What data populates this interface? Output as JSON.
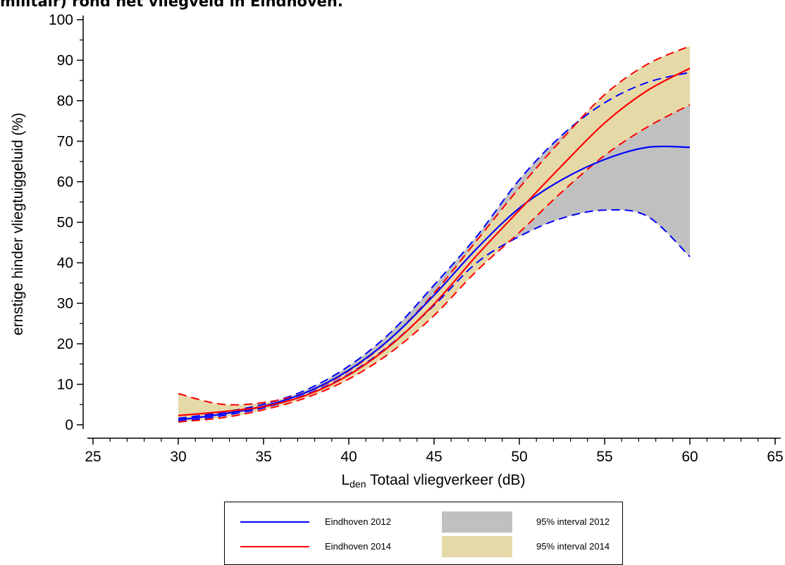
{
  "title": "militair) rond het vliegveld in Eindhoven.",
  "chart_data": {
    "type": "line",
    "xlabel_main": "L",
    "xlabel_sub": "den",
    "xlabel_rest": " Totaal vliegverkeer (dB)",
    "ylabel": "ernstige hinder vliegtuiggeluid (%)",
    "xlim": [
      25,
      65
    ],
    "ylim": [
      0,
      100
    ],
    "xticks": [
      25,
      30,
      35,
      40,
      45,
      50,
      55,
      60,
      65
    ],
    "yticks": [
      0,
      10,
      20,
      30,
      40,
      50,
      60,
      70,
      80,
      90,
      100
    ],
    "x": [
      30,
      32.5,
      35,
      37.5,
      40,
      42.5,
      45,
      47.5,
      50,
      52.5,
      55,
      57.5,
      60
    ],
    "series": [
      {
        "name": "Eindhoven 2012",
        "color": "#0000ff",
        "values": [
          1.2,
          2.6,
          4.6,
          8.0,
          13.5,
          21.5,
          32.0,
          43.5,
          53.5,
          60.5,
          65.5,
          68.5,
          68.5
        ],
        "lower": [
          0.8,
          2.2,
          4.2,
          7.5,
          12.5,
          20.0,
          29.5,
          40.0,
          46.5,
          51.0,
          53.0,
          51.5,
          41.5
        ],
        "upper": [
          1.6,
          3.0,
          5.1,
          8.6,
          14.5,
          23.0,
          34.5,
          46.5,
          60.5,
          71.5,
          79.5,
          84.5,
          87.0
        ]
      },
      {
        "name": "Eindhoven 2014",
        "color": "#ff0000",
        "values": [
          2.3,
          3.2,
          4.5,
          7.3,
          12.3,
          19.8,
          29.8,
          41.8,
          53.0,
          64.0,
          74.5,
          82.5,
          88.0
        ],
        "lower": [
          0.7,
          1.7,
          3.7,
          6.7,
          11.3,
          18.0,
          27.0,
          38.0,
          47.5,
          57.5,
          66.5,
          73.5,
          79.0
        ],
        "upper": [
          7.7,
          5.1,
          5.5,
          8.0,
          13.3,
          21.5,
          32.5,
          45.5,
          58.5,
          70.5,
          81.5,
          89.0,
          93.5
        ]
      }
    ],
    "legend": {
      "position": "bottom",
      "items": [
        {
          "label": "Eindhoven 2012",
          "kind": "line",
          "color": "#0000ff"
        },
        {
          "label": "95% interval 2012",
          "kind": "band",
          "color": "#c0c0c0"
        },
        {
          "label": "Eindhoven 2014",
          "kind": "line",
          "color": "#ff0000"
        },
        {
          "label": "95% interval 2014",
          "kind": "band",
          "color": "#e6d9a8"
        }
      ]
    },
    "band_colors": {
      "2012": "#c0c0c0",
      "2014": "#e6d9a8"
    },
    "grid": false
  }
}
